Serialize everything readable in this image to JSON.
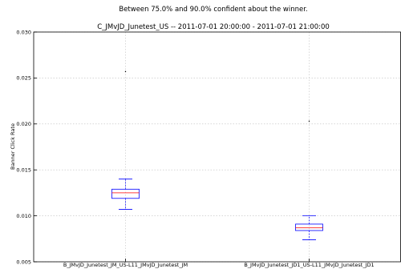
{
  "chart_data": {
    "type": "box",
    "suptitle": "Between 75.0% and 90.0% confident about the winner.",
    "title": "C_JMvJD_Junetest_US -- 2011-07-01 20:00:00 - 2011-07-01 21:00:00",
    "xlabel": "",
    "ylabel": "Banner Click Rate",
    "ylim": [
      0.005,
      0.03
    ],
    "yticks": [
      0.005,
      0.01,
      0.015,
      0.02,
      0.025,
      0.03
    ],
    "ytick_labels": [
      "0.005",
      "0.010",
      "0.015",
      "0.020",
      "0.025",
      "0.030"
    ],
    "grid": true,
    "categories": [
      "B_JMvJD_Junetest_JM_US-L11_JMvJD_Junetest_JM",
      "B_JMvJD_Junetest_JD1_US-L11_JMvJD_Junetest_JD1"
    ],
    "boxes": [
      {
        "whisker_low": 0.0107,
        "q1": 0.0119,
        "median": 0.0125,
        "q3": 0.0129,
        "whisker_high": 0.014,
        "outliers": [
          0.0257
        ]
      },
      {
        "whisker_low": 0.0074,
        "q1": 0.0084,
        "median": 0.0087,
        "q3": 0.0091,
        "whisker_high": 0.01,
        "outliers": [
          0.0203
        ]
      }
    ],
    "colors": {
      "box": "#0000ff",
      "median": "#ff0000",
      "outlier": "#000000",
      "grid": "#bfbfbf",
      "axes": "#000000"
    }
  }
}
